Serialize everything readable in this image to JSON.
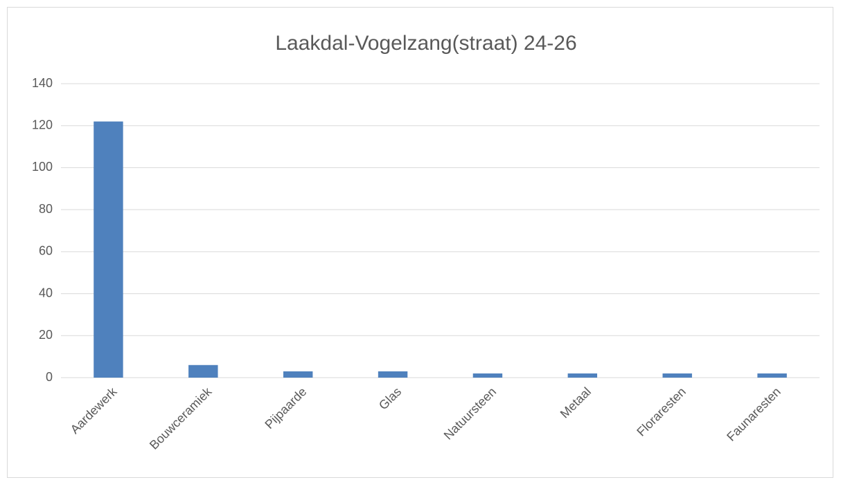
{
  "chart_data": {
    "type": "bar",
    "title": "Laakdal-Vogelzang(straat) 24-26",
    "categories": [
      "Aardewerk",
      "Bouwceramiek",
      "Pijpaarde",
      "Glas",
      "Natuursteen",
      "Metaal",
      "Floraresten",
      "Faunaresten"
    ],
    "values": [
      122,
      6,
      3,
      3,
      2,
      2,
      2,
      2
    ],
    "color": "#4f81bd",
    "ylim": [
      0,
      140
    ],
    "yticks": [
      0,
      20,
      40,
      60,
      80,
      100,
      120,
      140
    ],
    "grid": true
  }
}
